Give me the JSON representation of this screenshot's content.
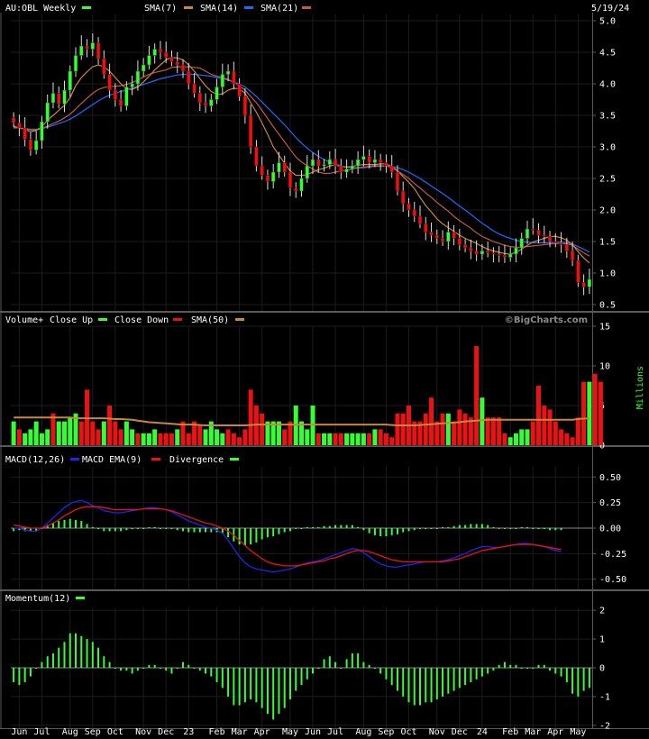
{
  "chart_data": [
    {
      "type": "candlestick",
      "panel": "price",
      "title": "AU:OBL Weekly",
      "date_label": "5/19/24",
      "legend": [
        {
          "name": "SMA(7)",
          "color": "#c8873a"
        },
        {
          "name": "SMA(14)",
          "color": "#c8873a"
        },
        {
          "name": "SMA(21)",
          "color": "#1f6bff"
        },
        {
          "name": "",
          "color": "#c05a4a"
        }
      ],
      "legend_labels": {
        "sma7": "SMA(7)",
        "sma14": "SMA(14)",
        "sma21": "SMA(21)"
      },
      "ylim": [
        0.4,
        5.1
      ],
      "y_ticks": [
        "5.0",
        "4.5",
        "4.0",
        "3.5",
        "3.0",
        "2.5",
        "2.0",
        "1.5",
        "1.0",
        "0.5"
      ],
      "y_tick_values": [
        5.0,
        4.5,
        4.0,
        3.5,
        3.0,
        2.5,
        2.0,
        1.5,
        1.0,
        0.5
      ],
      "close": [
        3.38,
        3.3,
        3.12,
        2.95,
        3.1,
        3.4,
        3.7,
        3.85,
        3.68,
        3.9,
        4.2,
        4.45,
        4.6,
        4.55,
        4.65,
        4.4,
        4.15,
        3.9,
        3.75,
        3.65,
        3.95,
        4.0,
        4.2,
        4.3,
        4.45,
        4.55,
        4.5,
        4.42,
        4.35,
        4.3,
        4.2,
        4.0,
        3.85,
        3.7,
        3.65,
        3.75,
        3.95,
        4.15,
        4.2,
        4.0,
        3.8,
        3.5,
        3.0,
        2.7,
        2.55,
        2.45,
        2.6,
        2.75,
        2.6,
        2.35,
        2.3,
        2.5,
        2.7,
        2.8,
        2.7,
        2.72,
        2.8,
        2.7,
        2.6,
        2.65,
        2.7,
        2.8,
        2.85,
        2.75,
        2.8,
        2.75,
        2.7,
        2.6,
        2.3,
        2.1,
        2.0,
        1.9,
        1.78,
        1.65,
        1.6,
        1.55,
        1.5,
        1.65,
        1.55,
        1.45,
        1.4,
        1.35,
        1.3,
        1.35,
        1.32,
        1.3,
        1.28,
        1.25,
        1.3,
        1.4,
        1.55,
        1.7,
        1.68,
        1.6,
        1.58,
        1.5,
        1.48,
        1.45,
        1.35,
        1.2,
        0.85,
        0.78,
        0.9
      ],
      "sma7": [
        3.33,
        3.3,
        3.28,
        3.24,
        3.26,
        3.32,
        3.42,
        3.5,
        3.58,
        3.66,
        3.78,
        3.97,
        4.1,
        4.19,
        4.27,
        4.3,
        4.27,
        4.2,
        4.1,
        4.0,
        3.92,
        3.91,
        3.95,
        4.03,
        4.12,
        4.22,
        4.3,
        4.38,
        4.42,
        4.41,
        4.38,
        4.3,
        4.2,
        4.08,
        3.97,
        3.88,
        3.83,
        3.84,
        3.9,
        3.93,
        3.92,
        3.85,
        3.7,
        3.55,
        3.38,
        3.2,
        3.0,
        2.87,
        2.74,
        2.62,
        2.55,
        2.55,
        2.56,
        2.6,
        2.64,
        2.66,
        2.7,
        2.71,
        2.69,
        2.68,
        2.69,
        2.71,
        2.72,
        2.72,
        2.72,
        2.73,
        2.73,
        2.69,
        2.62,
        2.53,
        2.44,
        2.34,
        2.2,
        2.07,
        1.97,
        1.86,
        1.78,
        1.72,
        1.66,
        1.6,
        1.55,
        1.51,
        1.47,
        1.42,
        1.38,
        1.35,
        1.33,
        1.31,
        1.3,
        1.33,
        1.38,
        1.44,
        1.49,
        1.52,
        1.55,
        1.58,
        1.58,
        1.56,
        1.52,
        1.45,
        1.34,
        1.24,
        1.16
      ],
      "sma14": [
        3.31,
        3.3,
        3.29,
        3.27,
        3.27,
        3.29,
        3.33,
        3.37,
        3.41,
        3.46,
        3.52,
        3.6,
        3.69,
        3.77,
        3.85,
        3.91,
        3.94,
        3.96,
        3.96,
        3.97,
        3.99,
        4.02,
        4.06,
        4.11,
        4.15,
        4.18,
        4.2,
        4.22,
        4.26,
        4.27,
        4.27,
        4.27,
        4.26,
        4.25,
        4.2,
        4.15,
        4.12,
        4.1,
        4.07,
        4.02,
        3.97,
        3.9,
        3.8,
        3.7,
        3.58,
        3.45,
        3.32,
        3.2,
        3.08,
        2.96,
        2.84,
        2.76,
        2.7,
        2.65,
        2.6,
        2.58,
        2.58,
        2.6,
        2.62,
        2.63,
        2.65,
        2.67,
        2.68,
        2.69,
        2.7,
        2.7,
        2.7,
        2.67,
        2.62,
        2.56,
        2.5,
        2.42,
        2.35,
        2.27,
        2.2,
        2.12,
        2.05,
        1.98,
        1.9,
        1.83,
        1.77,
        1.71,
        1.64,
        1.58,
        1.54,
        1.5,
        1.47,
        1.44,
        1.42,
        1.41,
        1.41,
        1.42,
        1.43,
        1.44,
        1.45,
        1.46,
        1.47,
        1.47,
        1.46,
        1.44,
        1.38,
        1.32,
        1.27
      ],
      "sma21": [
        3.3,
        3.3,
        3.29,
        3.28,
        3.28,
        3.29,
        3.31,
        3.34,
        3.37,
        3.4,
        3.44,
        3.49,
        3.55,
        3.61,
        3.67,
        3.73,
        3.78,
        3.82,
        3.85,
        3.88,
        3.9,
        3.93,
        3.96,
        3.99,
        4.02,
        4.05,
        4.08,
        4.1,
        4.12,
        4.14,
        4.15,
        4.15,
        4.15,
        4.14,
        4.13,
        4.12,
        4.1,
        4.08,
        4.06,
        4.03,
        4.0,
        3.95,
        3.88,
        3.8,
        3.71,
        3.62,
        3.53,
        3.44,
        3.35,
        3.25,
        3.15,
        3.06,
        2.98,
        2.91,
        2.85,
        2.8,
        2.76,
        2.73,
        2.7,
        2.68,
        2.67,
        2.67,
        2.67,
        2.68,
        2.69,
        2.69,
        2.7,
        2.69,
        2.67,
        2.64,
        2.6,
        2.55,
        2.5,
        2.44,
        2.38,
        2.32,
        2.26,
        2.2,
        2.13,
        2.06,
        2.0,
        1.93,
        1.86,
        1.79,
        1.73,
        1.67,
        1.62,
        1.58,
        1.55,
        1.52,
        1.5,
        1.49,
        1.48,
        1.48,
        1.48,
        1.48,
        1.49,
        1.49,
        1.48,
        1.46,
        1.42,
        1.38,
        1.33
      ]
    },
    {
      "type": "bar",
      "panel": "volume",
      "title": "Volume+",
      "legend": [
        {
          "name": "Close Up",
          "color": "#33ff33"
        },
        {
          "name": "Close Down",
          "color": "#ee1111"
        },
        {
          "name": "SMA(50)",
          "color": "#c8873a"
        }
      ],
      "watermark": "©BigCharts.com",
      "ylabel": "Millions",
      "ylim": [
        0,
        15
      ],
      "y_ticks": [
        "15",
        "10",
        "5",
        "0"
      ],
      "y_tick_values": [
        15,
        10,
        5,
        0
      ],
      "values": [
        3,
        2,
        1.5,
        2,
        3,
        1.5,
        2,
        4,
        3,
        3,
        3.5,
        4,
        3,
        7,
        3,
        2,
        3,
        5,
        3,
        2,
        3,
        2,
        1.5,
        1.5,
        1.5,
        2,
        1.5,
        1.5,
        1.5,
        2,
        3,
        1.5,
        3,
        2.5,
        2,
        3,
        2,
        1.5,
        2,
        1.5,
        1,
        2,
        7,
        5,
        4,
        3,
        3,
        3,
        2,
        3,
        5,
        3,
        2,
        5,
        1.5,
        1.5,
        1.5,
        1.5,
        1.5,
        1.5,
        1.5,
        1.5,
        1.5,
        1.5,
        2,
        2,
        1.5,
        1,
        4,
        4,
        5,
        3,
        3,
        4,
        6,
        3,
        4,
        4,
        3,
        4.5,
        4,
        3.5,
        12.5,
        6,
        3.5,
        3.5,
        3.5,
        1.5,
        1,
        1.5,
        2,
        2,
        3,
        7.5,
        5,
        4.5,
        3,
        2,
        1.5,
        1,
        3.5,
        8,
        8,
        9,
        8
      ],
      "close_up": [
        true,
        false,
        true,
        true,
        true,
        true,
        true,
        false,
        true,
        true,
        true,
        true,
        false,
        false,
        false,
        false,
        true,
        false,
        false,
        false,
        true,
        true,
        false,
        true,
        true,
        true,
        false,
        false,
        false,
        true,
        false,
        false,
        false,
        false,
        true,
        true,
        true,
        true,
        false,
        false,
        false,
        false,
        false,
        false,
        false,
        true,
        true,
        true,
        false,
        false,
        true,
        true,
        true,
        true,
        false,
        true,
        true,
        false,
        false,
        true,
        true,
        true,
        true,
        false,
        true,
        false,
        false,
        false,
        false,
        false,
        false,
        false,
        false,
        false,
        false,
        false,
        false,
        true,
        false,
        false,
        false,
        false,
        false,
        true,
        false,
        false,
        false,
        false,
        true,
        true,
        true,
        true,
        false,
        false,
        false,
        false,
        false,
        false,
        false,
        false,
        false,
        false,
        true
      ],
      "sma50": [
        3.5,
        3.5,
        3.5,
        3.5,
        3.5,
        3.5,
        3.5,
        3.5,
        3.5,
        3.5,
        3.5,
        3.4,
        3.4,
        3.4,
        3.4,
        3.4,
        3.4,
        3.35,
        3.3,
        3.3,
        3.25,
        3.2,
        3.1,
        3.0,
        2.9,
        2.85,
        2.8,
        2.75,
        2.7,
        2.65,
        2.6,
        2.6,
        2.6,
        2.55,
        2.5,
        2.5,
        2.5,
        2.5,
        2.5,
        2.5,
        2.5,
        2.5,
        2.55,
        2.6,
        2.6,
        2.6,
        2.6,
        2.6,
        2.6,
        2.6,
        2.6,
        2.6,
        2.6,
        2.6,
        2.6,
        2.6,
        2.6,
        2.6,
        2.6,
        2.6,
        2.6,
        2.6,
        2.6,
        2.6,
        2.6,
        2.6,
        2.6,
        2.55,
        2.5,
        2.5,
        2.5,
        2.5,
        2.55,
        2.6,
        2.65,
        2.7,
        2.75,
        2.8,
        2.85,
        2.9,
        3.0,
        3.05,
        3.1,
        3.15,
        3.2,
        3.2,
        3.2,
        3.2,
        3.2,
        3.2,
        3.2,
        3.2,
        3.2,
        3.2,
        3.2,
        3.2,
        3.2,
        3.2,
        3.2,
        3.2,
        3.3,
        3.35,
        3.4
      ]
    },
    {
      "type": "line",
      "panel": "macd",
      "title": "MACD(12,26)",
      "legend": [
        {
          "name": "MACD EMA(9)",
          "color": "#2222ee"
        },
        {
          "name": "Divergence",
          "color": "#ee1111"
        },
        {
          "name": "",
          "color": "#33ff33"
        }
      ],
      "legend_labels": {
        "macd": "MACD EMA(9)",
        "divergence": "Divergence"
      },
      "ylim": [
        -0.6,
        0.6
      ],
      "y_ticks": [
        "0.50",
        "0.25",
        "0.00",
        "-0.25",
        "-0.50"
      ],
      "y_tick_values": [
        0.5,
        0.25,
        0.0,
        -0.25,
        -0.5
      ],
      "macd": [
        0.0,
        0.0,
        -0.02,
        -0.03,
        -0.03,
        0.0,
        0.05,
        0.1,
        0.15,
        0.2,
        0.24,
        0.26,
        0.27,
        0.25,
        0.22,
        0.2,
        0.17,
        0.16,
        0.15,
        0.15,
        0.16,
        0.17,
        0.18,
        0.19,
        0.2,
        0.2,
        0.19,
        0.18,
        0.16,
        0.13,
        0.1,
        0.07,
        0.05,
        0.03,
        0.01,
        0.0,
        -0.02,
        -0.05,
        -0.12,
        -0.2,
        -0.28,
        -0.34,
        -0.38,
        -0.4,
        -0.41,
        -0.42,
        -0.43,
        -0.42,
        -0.41,
        -0.4,
        -0.38,
        -0.36,
        -0.34,
        -0.33,
        -0.32,
        -0.3,
        -0.28,
        -0.26,
        -0.24,
        -0.22,
        -0.2,
        -0.21,
        -0.24,
        -0.28,
        -0.32,
        -0.35,
        -0.37,
        -0.38,
        -0.38,
        -0.37,
        -0.36,
        -0.35,
        -0.34,
        -0.33,
        -0.33,
        -0.33,
        -0.32,
        -0.31,
        -0.29,
        -0.27,
        -0.25,
        -0.22,
        -0.2,
        -0.18,
        -0.18,
        -0.19,
        -0.19,
        -0.18,
        -0.17,
        -0.16,
        -0.15,
        -0.15,
        -0.16,
        -0.17,
        -0.18,
        -0.2,
        -0.22,
        -0.23
      ],
      "signal": [
        0.03,
        0.02,
        0.01,
        0.0,
        0.0,
        0.0,
        0.02,
        0.05,
        0.08,
        0.12,
        0.15,
        0.18,
        0.2,
        0.21,
        0.21,
        0.21,
        0.2,
        0.19,
        0.18,
        0.18,
        0.18,
        0.18,
        0.18,
        0.19,
        0.19,
        0.19,
        0.19,
        0.18,
        0.17,
        0.15,
        0.13,
        0.11,
        0.09,
        0.07,
        0.05,
        0.04,
        0.02,
        0.0,
        -0.03,
        -0.07,
        -0.12,
        -0.17,
        -0.22,
        -0.26,
        -0.3,
        -0.33,
        -0.35,
        -0.36,
        -0.37,
        -0.37,
        -0.37,
        -0.36,
        -0.35,
        -0.34,
        -0.33,
        -0.32,
        -0.3,
        -0.29,
        -0.27,
        -0.25,
        -0.23,
        -0.22,
        -0.22,
        -0.23,
        -0.25,
        -0.27,
        -0.29,
        -0.31,
        -0.32,
        -0.33,
        -0.33,
        -0.33,
        -0.33,
        -0.33,
        -0.33,
        -0.33,
        -0.33,
        -0.32,
        -0.31,
        -0.3,
        -0.28,
        -0.26,
        -0.24,
        -0.22,
        -0.21,
        -0.2,
        -0.19,
        -0.18,
        -0.17,
        -0.16,
        -0.16,
        -0.16,
        -0.16,
        -0.17,
        -0.18,
        -0.19,
        -0.2,
        -0.21
      ],
      "divergence": [
        -0.03,
        -0.02,
        -0.03,
        -0.03,
        -0.03,
        0.0,
        0.03,
        0.05,
        0.07,
        0.08,
        0.09,
        0.08,
        0.07,
        0.04,
        0.01,
        -0.01,
        -0.03,
        -0.03,
        -0.03,
        -0.03,
        -0.02,
        -0.01,
        0.0,
        0.0,
        0.01,
        0.01,
        0.0,
        0.0,
        -0.01,
        -0.02,
        -0.03,
        -0.04,
        -0.04,
        -0.04,
        -0.04,
        -0.04,
        -0.04,
        -0.05,
        -0.09,
        -0.13,
        -0.16,
        -0.17,
        -0.16,
        -0.14,
        -0.11,
        -0.09,
        -0.08,
        -0.06,
        -0.04,
        -0.03,
        -0.01,
        0.0,
        0.01,
        0.01,
        0.01,
        0.02,
        0.02,
        0.03,
        0.03,
        0.03,
        0.03,
        0.01,
        -0.02,
        -0.05,
        -0.07,
        -0.08,
        -0.08,
        -0.07,
        -0.06,
        -0.04,
        -0.03,
        -0.02,
        -0.01,
        0.0,
        0.0,
        0.0,
        0.01,
        0.01,
        0.02,
        0.03,
        0.03,
        0.04,
        0.04,
        0.04,
        0.03,
        0.01,
        0.0,
        0.0,
        0.0,
        0.0,
        0.01,
        0.01,
        0.0,
        -0.01,
        -0.01,
        -0.02,
        -0.02,
        -0.02
      ]
    },
    {
      "type": "bar",
      "panel": "momentum",
      "title": "Momentum(12)",
      "legend": [
        {
          "name": "",
          "color": "#33ff33"
        }
      ],
      "ylim": [
        -2.1,
        2.1
      ],
      "y_ticks": [
        "2",
        "1",
        "0",
        "-1",
        "-2"
      ],
      "y_tick_values": [
        2,
        1,
        0,
        -1,
        -2
      ],
      "values": [
        -0.5,
        -0.6,
        -0.5,
        -0.3,
        0.0,
        0.2,
        0.4,
        0.5,
        0.7,
        0.9,
        1.2,
        1.2,
        1.1,
        1.0,
        0.9,
        0.7,
        0.4,
        0.2,
        0.0,
        -0.1,
        -0.1,
        -0.2,
        -0.1,
        0.0,
        0.1,
        0.1,
        0.0,
        -0.1,
        -0.2,
        0.0,
        0.2,
        0.1,
        0.0,
        -0.1,
        -0.2,
        -0.3,
        -0.5,
        -0.7,
        -1.0,
        -1.3,
        -1.3,
        -1.2,
        -1.1,
        -1.2,
        -1.4,
        -1.6,
        -1.8,
        -1.6,
        -1.4,
        -1.1,
        -0.8,
        -0.6,
        -0.4,
        -0.2,
        0.0,
        0.3,
        0.4,
        0.2,
        0.0,
        0.3,
        0.5,
        0.5,
        0.2,
        0.1,
        0.0,
        -0.2,
        -0.4,
        -0.6,
        -0.8,
        -1.0,
        -1.2,
        -1.3,
        -1.3,
        -1.2,
        -1.2,
        -1.1,
        -1.0,
        -0.9,
        -0.8,
        -0.7,
        -0.6,
        -0.5,
        -0.4,
        -0.3,
        -0.2,
        -0.1,
        0.1,
        0.2,
        0.1,
        0.1,
        0.0,
        0.0,
        0.0,
        0.1,
        0.1,
        -0.1,
        -0.2,
        -0.3,
        -0.5,
        -0.9,
        -1.0,
        -0.8,
        -0.7
      ]
    }
  ],
  "x_axis": {
    "labels": [
      "Jun",
      "Jul",
      "Aug",
      "Sep",
      "Oct",
      "Nov",
      "Dec",
      "23",
      "Feb",
      "Mar",
      "Apr",
      "May",
      "Jun",
      "Jul",
      "Aug",
      "Sep",
      "Oct",
      "Nov",
      "Dec",
      "24",
      "Feb",
      "Mar",
      "Apr",
      "May"
    ],
    "label_week_index": [
      1,
      5,
      10,
      14,
      18,
      23,
      27,
      31,
      36,
      40,
      44,
      49,
      53,
      57,
      62,
      66,
      70,
      75,
      79,
      83,
      88,
      92,
      96,
      100
    ]
  },
  "colors": {
    "background": "#000000",
    "grid": "#444444",
    "separator": "#5a5a5a",
    "up": "#33ff33",
    "down": "#ee1111",
    "wick": "#dddddd",
    "sma_orange": "#c8873a",
    "sma_blue": "#1f6bff",
    "sma_red": "#c05a4a",
    "macd_blue": "#2222ee",
    "signal_red": "#ee1111",
    "divergence_green": "#33ff33",
    "momentum_green": "#33ff33",
    "text": "#ffffff",
    "watermark": "#8a8a8a"
  }
}
